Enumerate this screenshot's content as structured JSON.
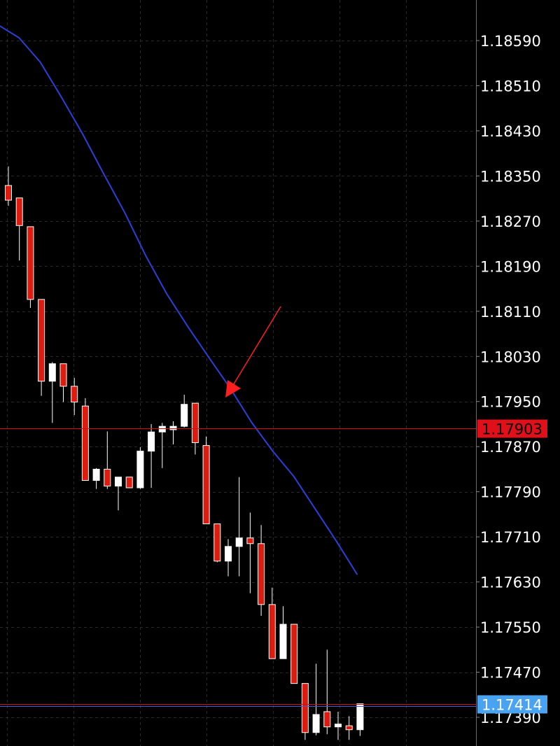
{
  "chart_data": {
    "type": "candlestick",
    "title": "",
    "xlabel": "",
    "ylabel": "",
    "ylim": [
      1.1735,
      1.1866
    ],
    "y_ticks": [
      "1.18590",
      "1.18510",
      "1.18430",
      "1.18350",
      "1.18270",
      "1.18190",
      "1.18110",
      "1.18030",
      "1.17950",
      "1.17870",
      "1.17790",
      "1.17710",
      "1.17630",
      "1.17550",
      "1.17470",
      "1.17390"
    ],
    "y_tick_values": [
      1.1859,
      1.1851,
      1.1843,
      1.1835,
      1.1827,
      1.1819,
      1.1811,
      1.1803,
      1.1795,
      1.1787,
      1.1779,
      1.1771,
      1.1763,
      1.1755,
      1.1747,
      1.1739
    ],
    "grid": true,
    "candles": [
      {
        "open": 1.18333,
        "high": 1.18367,
        "low": 1.18297,
        "close": 1.18307
      },
      {
        "open": 1.18311,
        "high": 1.18311,
        "low": 1.182,
        "close": 1.18262
      },
      {
        "open": 1.1826,
        "high": 1.1826,
        "low": 1.18116,
        "close": 1.18131
      },
      {
        "open": 1.18131,
        "high": 1.18131,
        "low": 1.1796,
        "close": 1.17986
      },
      {
        "open": 1.17986,
        "high": 1.1802,
        "low": 1.17912,
        "close": 1.18017
      },
      {
        "open": 1.18017,
        "high": 1.18017,
        "low": 1.17949,
        "close": 1.17977
      },
      {
        "open": 1.17977,
        "high": 1.17992,
        "low": 1.17926,
        "close": 1.17949
      },
      {
        "open": 1.17942,
        "high": 1.17956,
        "low": 1.17812,
        "close": 1.1781
      },
      {
        "open": 1.1781,
        "high": 1.17832,
        "low": 1.17795,
        "close": 1.1783
      },
      {
        "open": 1.1783,
        "high": 1.17897,
        "low": 1.17795,
        "close": 1.178
      },
      {
        "open": 1.178,
        "high": 1.17816,
        "low": 1.17757,
        "close": 1.17816
      },
      {
        "open": 1.17816,
        "high": 1.17816,
        "low": 1.178,
        "close": 1.17797
      },
      {
        "open": 1.17797,
        "high": 1.17869,
        "low": 1.17795,
        "close": 1.17862
      },
      {
        "open": 1.17862,
        "high": 1.1791,
        "low": 1.17797,
        "close": 1.17896
      },
      {
        "open": 1.17896,
        "high": 1.17912,
        "low": 1.17832,
        "close": 1.17906
      },
      {
        "open": 1.179,
        "high": 1.17915,
        "low": 1.17874,
        "close": 1.17906
      },
      {
        "open": 1.17906,
        "high": 1.17962,
        "low": 1.17904,
        "close": 1.17945
      },
      {
        "open": 1.17947,
        "high": 1.17947,
        "low": 1.17856,
        "close": 1.17877
      },
      {
        "open": 1.17872,
        "high": 1.17888,
        "low": 1.17733,
        "close": 1.17733
      },
      {
        "open": 1.17733,
        "high": 1.17733,
        "low": 1.17665,
        "close": 1.17667
      },
      {
        "open": 1.17667,
        "high": 1.17706,
        "low": 1.1764,
        "close": 1.17693
      },
      {
        "open": 1.17693,
        "high": 1.17816,
        "low": 1.1764,
        "close": 1.17708
      },
      {
        "open": 1.17708,
        "high": 1.17753,
        "low": 1.1761,
        "close": 1.17698
      },
      {
        "open": 1.17698,
        "high": 1.17731,
        "low": 1.1757,
        "close": 1.1759
      },
      {
        "open": 1.1759,
        "high": 1.1762,
        "low": 1.17494,
        "close": 1.17494
      },
      {
        "open": 1.17494,
        "high": 1.17587,
        "low": 1.17494,
        "close": 1.17555
      },
      {
        "open": 1.17555,
        "high": 1.17555,
        "low": 1.1745,
        "close": 1.1745
      },
      {
        "open": 1.1745,
        "high": 1.1745,
        "low": 1.1735,
        "close": 1.17363
      },
      {
        "open": 1.17363,
        "high": 1.17485,
        "low": 1.17358,
        "close": 1.17395
      },
      {
        "open": 1.174,
        "high": 1.1751,
        "low": 1.1736,
        "close": 1.17373
      },
      {
        "open": 1.17373,
        "high": 1.174,
        "low": 1.1735,
        "close": 1.17378
      },
      {
        "open": 1.17375,
        "high": 1.17392,
        "low": 1.1735,
        "close": 1.17368
      },
      {
        "open": 1.17368,
        "high": 1.17414,
        "low": 1.17357,
        "close": 1.17414
      }
    ],
    "moving_average": {
      "color": "#2b3fd9",
      "values": [
        1.18618,
        1.18595,
        1.18552,
        1.1849,
        1.18425,
        1.18354,
        1.18285,
        1.18208,
        1.1814,
        1.18082,
        1.18027,
        1.17973,
        1.17913,
        1.17862,
        1.17817,
        1.1776,
        1.17703,
        1.17643
      ]
    },
    "price_lines": [
      {
        "label": "1.17903",
        "value": 1.17903,
        "line_color": "#d01010",
        "box_color": "#e0101a",
        "text_color": "#000000"
      },
      {
        "label": "1.17414",
        "value": 1.17414,
        "line_color": "#d01010",
        "box_color": "#4aa3f0",
        "text_color": "#ffffff"
      }
    ],
    "annotation": {
      "type": "arrow",
      "color": "#ff1e1e"
    }
  }
}
